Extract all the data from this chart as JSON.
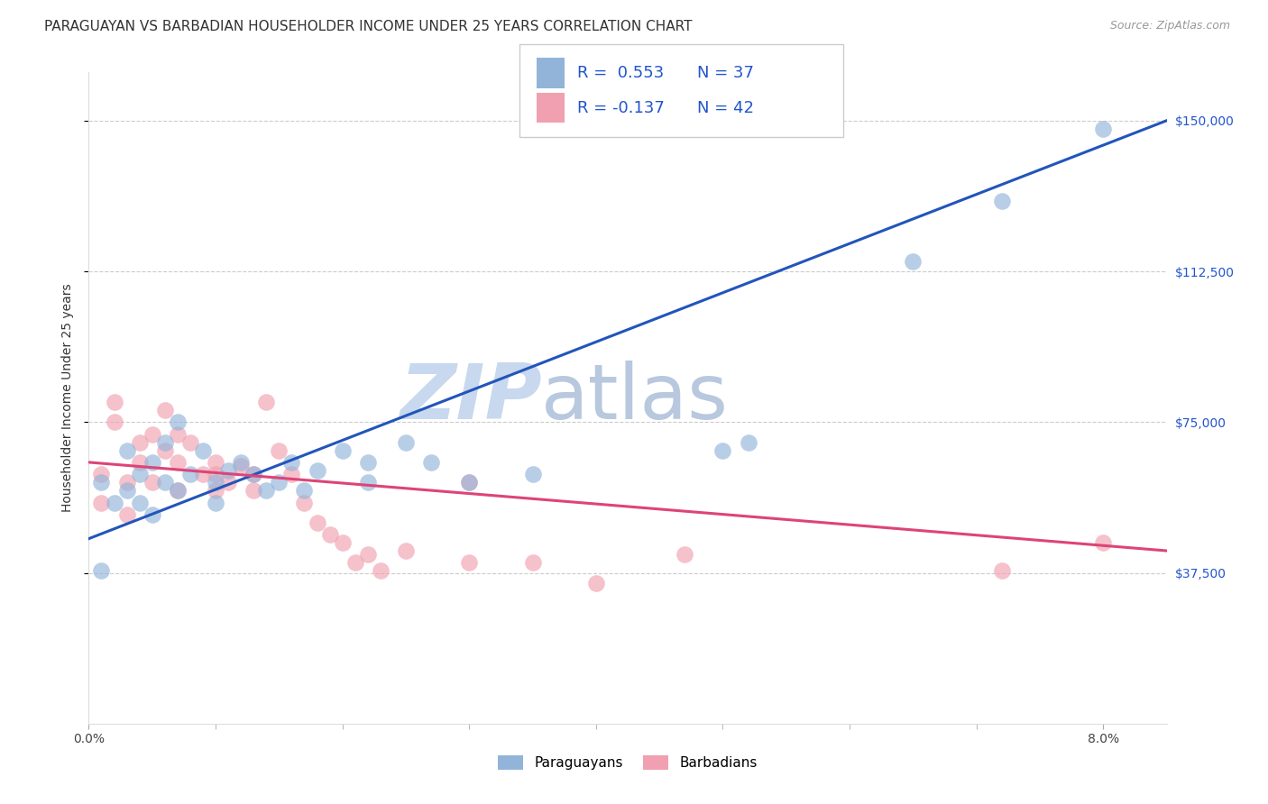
{
  "title": "PARAGUAYAN VS BARBADIAN HOUSEHOLDER INCOME UNDER 25 YEARS CORRELATION CHART",
  "source": "Source: ZipAtlas.com",
  "ylabel": "Householder Income Under 25 years",
  "watermark_zip": "ZIP",
  "watermark_atlas": "atlas",
  "ytick_labels": [
    "$37,500",
    "$75,000",
    "$112,500",
    "$150,000"
  ],
  "ytick_values": [
    37500,
    75000,
    112500,
    150000
  ],
  "ylim": [
    0,
    162000
  ],
  "xlim": [
    0.0,
    0.085
  ],
  "blue_color": "#92B4D9",
  "pink_color": "#F0A0B0",
  "blue_line_color": "#2255BB",
  "pink_line_color": "#DD4477",
  "blue_trend_x": [
    0.0,
    0.085
  ],
  "blue_trend_y": [
    46000,
    150000
  ],
  "pink_trend_x": [
    0.0,
    0.085
  ],
  "pink_trend_y": [
    65000,
    43000
  ],
  "paraguayan_x": [
    0.001,
    0.001,
    0.002,
    0.003,
    0.003,
    0.004,
    0.004,
    0.005,
    0.005,
    0.006,
    0.006,
    0.007,
    0.007,
    0.008,
    0.009,
    0.01,
    0.01,
    0.011,
    0.012,
    0.013,
    0.014,
    0.015,
    0.016,
    0.017,
    0.018,
    0.02,
    0.022,
    0.025,
    0.027,
    0.03,
    0.035,
    0.05,
    0.052,
    0.065,
    0.072,
    0.08,
    0.022
  ],
  "paraguayan_y": [
    60000,
    38000,
    55000,
    68000,
    58000,
    62000,
    55000,
    65000,
    52000,
    70000,
    60000,
    75000,
    58000,
    62000,
    68000,
    60000,
    55000,
    63000,
    65000,
    62000,
    58000,
    60000,
    65000,
    58000,
    63000,
    68000,
    65000,
    70000,
    65000,
    60000,
    62000,
    68000,
    70000,
    115000,
    130000,
    148000,
    60000
  ],
  "barbadian_x": [
    0.001,
    0.001,
    0.002,
    0.002,
    0.003,
    0.003,
    0.004,
    0.004,
    0.005,
    0.005,
    0.006,
    0.006,
    0.007,
    0.007,
    0.007,
    0.008,
    0.009,
    0.01,
    0.01,
    0.01,
    0.011,
    0.012,
    0.013,
    0.013,
    0.014,
    0.015,
    0.016,
    0.017,
    0.018,
    0.019,
    0.02,
    0.021,
    0.022,
    0.023,
    0.025,
    0.03,
    0.03,
    0.035,
    0.04,
    0.047,
    0.072,
    0.08
  ],
  "barbadian_y": [
    62000,
    55000,
    80000,
    75000,
    60000,
    52000,
    70000,
    65000,
    72000,
    60000,
    78000,
    68000,
    72000,
    65000,
    58000,
    70000,
    62000,
    65000,
    58000,
    62000,
    60000,
    64000,
    58000,
    62000,
    80000,
    68000,
    62000,
    55000,
    50000,
    47000,
    45000,
    40000,
    42000,
    38000,
    43000,
    40000,
    60000,
    40000,
    35000,
    42000,
    38000,
    45000
  ],
  "dot_size": 180,
  "grid_color": "#CCCCCC",
  "background_color": "#FFFFFF",
  "title_fontsize": 11,
  "axis_label_fontsize": 10,
  "tick_fontsize": 10,
  "legend_fontsize": 13,
  "ytick_color": "#2255CC",
  "legend_r1": "R =  0.553",
  "legend_n1": "N = 37",
  "legend_r2": "R = -0.137",
  "legend_n2": "N = 42"
}
